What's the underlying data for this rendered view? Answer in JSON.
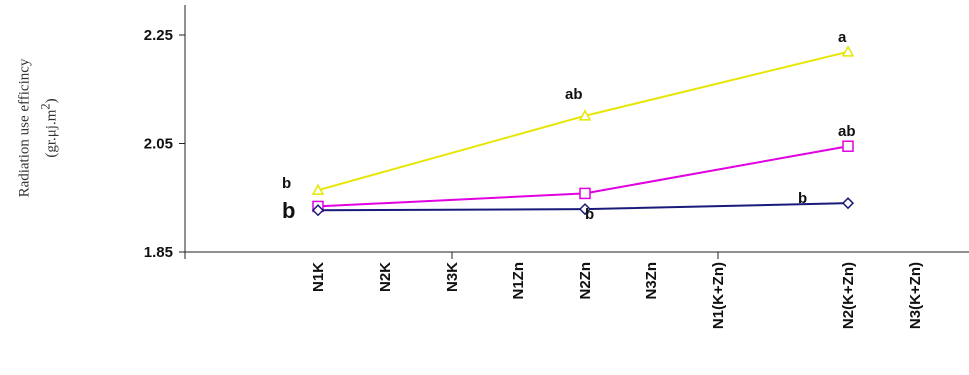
{
  "chart_data": {
    "type": "line",
    "title": "",
    "ylabel": "Radiation use efficincy",
    "ylabel_unit_base": "(gr.",
    "ylabel_unit_mu": "μj",
    "ylabel_unit_m": ".m",
    "ylabel_unit_sup": "2",
    "ylabel_unit_close": ")",
    "ylim": [
      1.85,
      2.3
    ],
    "yticks": [
      1.85,
      2.05,
      2.25
    ],
    "ytick_labels": [
      "1.85",
      "2.05",
      "2.25"
    ],
    "categories": [
      "N1K",
      "N2K",
      "N3K",
      "N1Zn",
      "N2Zn",
      "N3Zn",
      "N1(K+Zn)",
      "N2(K+Zn)",
      "N3(K+Zn)"
    ],
    "legend": "none",
    "grid": false,
    "series": [
      {
        "color": "#e6e600",
        "marker": "triangle",
        "values": [
          1.964,
          null,
          null,
          null,
          2.101,
          null,
          null,
          2.219,
          null
        ],
        "labels": [
          "b",
          "",
          "",
          "",
          "ab",
          "",
          "",
          "a",
          ""
        ]
      },
      {
        "color": "#e000e0",
        "marker": "square",
        "values": [
          1.934,
          null,
          null,
          null,
          1.958,
          null,
          null,
          2.045,
          null
        ],
        "labels": [
          "",
          "",
          "",
          "",
          "",
          "",
          "",
          "ab",
          ""
        ]
      },
      {
        "color": "#1a1a7a",
        "marker": "diamond",
        "values": [
          1.927,
          null,
          null,
          null,
          1.929,
          null,
          null,
          1.94,
          null
        ],
        "labels": [
          "b",
          "",
          "",
          "",
          "b",
          "",
          "",
          "b",
          ""
        ]
      }
    ]
  }
}
